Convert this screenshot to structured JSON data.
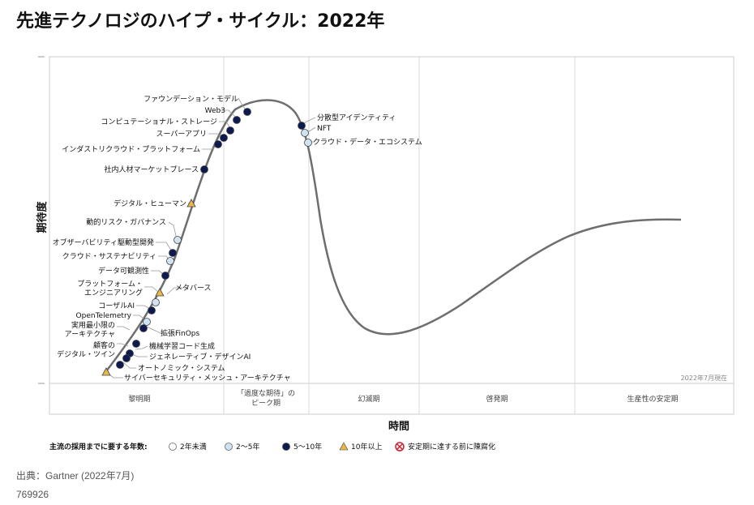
{
  "title": "先進テクノロジのハイプ・サイクル：2022年",
  "source": "出典：Gartner (2022年7月)",
  "doc_id": "769926",
  "colors": {
    "curve": "#6d6d6d",
    "marker_lt2": "#ffffff",
    "marker_2to5": "#cfe3f3",
    "marker_5to10": "#0d1a4f",
    "marker_10plus": "#e8b84a",
    "marker_obsolete": "#d0202e",
    "grid": "#d8d8d8"
  },
  "chart_data": {
    "type": "scatter",
    "title": "先進テクノロジのハイプ・サイクル：2022年",
    "xlabel": "時間",
    "ylabel": "期待度",
    "as_of": "2022年7月現在",
    "grid": true,
    "phases": [
      "黎明期",
      "「過度な期待」の\nピーク期",
      "幻滅期",
      "啓発期",
      "生産性の安定期"
    ],
    "legend": {
      "title": "主流の採用までに要する年数:",
      "position": "bottom",
      "items": [
        {
          "label": "2年未満",
          "marker": "circle-white"
        },
        {
          "label": "2～5年",
          "marker": "circle-light"
        },
        {
          "label": "5～10年",
          "marker": "circle-dark"
        },
        {
          "label": "10年以上",
          "marker": "triangle"
        },
        {
          "label": "安定期に達する前に陳腐化",
          "marker": "x-circle"
        }
      ]
    },
    "series": [
      {
        "name": "5～10年",
        "points": [
          "ファウンデーション・モデル",
          "Web3",
          "コンピュテーショナル・ストレージ",
          "スーパーアプリ",
          "インダストリクラウド・プラットフォーム",
          "社内人材マーケットプレース",
          "クラウド・サステナビリティ",
          "データ可観測性",
          "コーザルAI",
          "実用最小限の\nアーキテクチャ",
          "機械学習コード生成",
          "ジェネレーティブ・デザインAI",
          "オートノミック・システム",
          "分散型アイデンティティ",
          "デジタル・ツイン"
        ]
      },
      {
        "name": "2～5年",
        "points": [
          "オブザーバビリティ駆動型開発",
          "動的リスク・ガバナンス",
          "OpenTelemetry",
          "拡張FinOps",
          "NFT",
          "クラウド・データ・エコシステム",
          "顧客の"
        ]
      },
      {
        "name": "10年以上",
        "points": [
          "デジタル・ヒューマン",
          "メタバース",
          "サイバーセキュリティ・メッシュ・アーキテクチャ",
          "プラットフォーム・\nエンジニアリング"
        ]
      }
    ]
  },
  "labels": [
    {
      "text": "ファウンデーション・モデル"
    },
    {
      "text": "Web3"
    },
    {
      "text": "コンピュテーショナル・ストレージ"
    },
    {
      "text": "スーパーアプリ"
    },
    {
      "text": "インダストリクラウド・プラットフォーム"
    },
    {
      "text": "社内人材マーケットプレース"
    },
    {
      "text": "デジタル・ヒューマン"
    },
    {
      "text": "動的リスク・ガバナンス"
    },
    {
      "text": "オブザーバビリティ駆動型開発"
    },
    {
      "text": "クラウド・サステナビリティ"
    },
    {
      "text": "データ可観測性"
    },
    {
      "text": "プラットフォーム・"
    },
    {
      "text": "エンジニアリング"
    },
    {
      "text": "メタバース"
    },
    {
      "text": "コーザルAI"
    },
    {
      "text": "OpenTelemetry"
    },
    {
      "text": "実用最小限の"
    },
    {
      "text": "アーキテクチャ"
    },
    {
      "text": "拡張FinOps"
    },
    {
      "text": "顧客の"
    },
    {
      "text": "デジタル・ツイン"
    },
    {
      "text": "機械学習コード生成"
    },
    {
      "text": "ジェネレーティブ・デザインAI"
    },
    {
      "text": "オートノミック・システム"
    },
    {
      "text": "サイバーセキュリティ・メッシュ・アーキテクチャ"
    },
    {
      "text": "分散型アイデンティティ"
    },
    {
      "text": "NFT"
    },
    {
      "text": "クラウド・データ・エコシステム"
    }
  ]
}
